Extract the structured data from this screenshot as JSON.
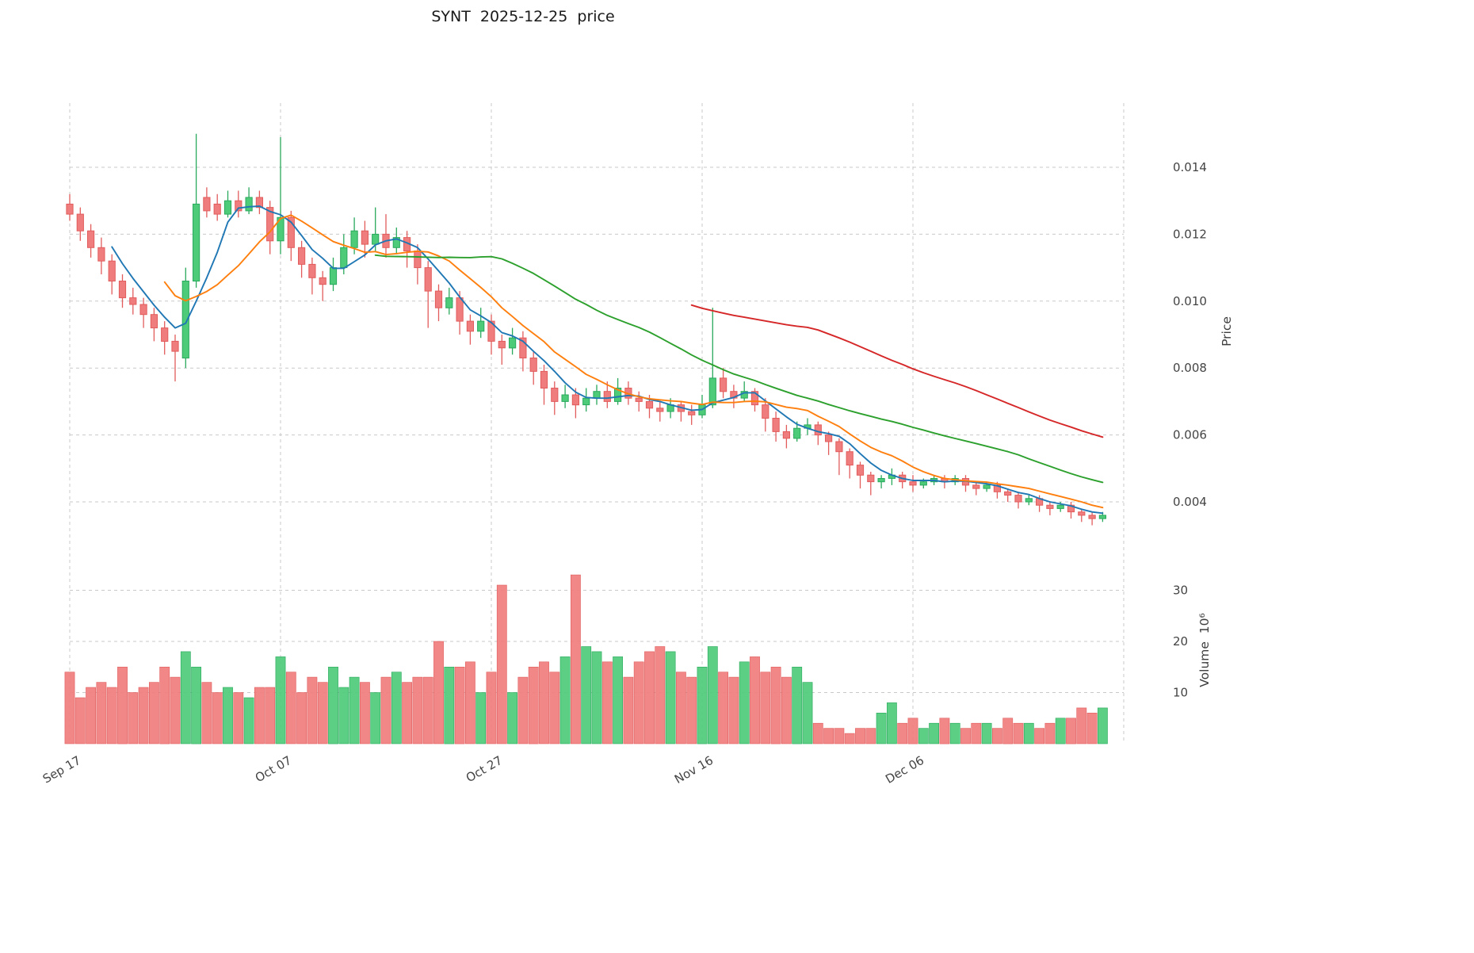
{
  "chart_data": {
    "type": "candlestick",
    "title": "SYNT  2025-12-25  price",
    "x_tick_labels": [
      "Sep 17",
      "Oct 07",
      "Oct 27",
      "Nov 16",
      "Dec 06"
    ],
    "x_tick_indices": [
      0,
      20,
      40,
      60,
      80
    ],
    "price_axis": {
      "label": "Price",
      "ticks": [
        0.004,
        0.006,
        0.008,
        0.01,
        0.012,
        0.014
      ],
      "tick_labels": [
        "0.004",
        "0.006",
        "0.008",
        "0.010",
        "0.012",
        "0.014"
      ],
      "ylim": [
        0.0027,
        0.0159
      ],
      "grid": true
    },
    "volume_axis": {
      "label": "Volume  10⁶",
      "ticks": [
        10,
        20,
        30
      ],
      "tick_labels": [
        "10",
        "20",
        "30"
      ],
      "unit_millions": true,
      "ylim": [
        0,
        37
      ],
      "grid": true
    },
    "colors": {
      "up": "#4ecb79",
      "up_edge": "#29a95c",
      "down": "#f07d7d",
      "down_edge": "#e25c5c",
      "grid": "#c9c9c9",
      "background": "#ffffff"
    },
    "moving_averages": [
      {
        "name": "ma5",
        "window": 5,
        "color": "#1f77b4"
      },
      {
        "name": "ma10",
        "window": 10,
        "color": "#ff7f0e"
      },
      {
        "name": "ma30",
        "window": 30,
        "color": "#2ca02c"
      },
      {
        "name": "ma60",
        "window": 60,
        "color": "#d62728"
      }
    ],
    "candle_fields": [
      "date",
      "open",
      "high",
      "low",
      "close",
      "volume_millions"
    ],
    "candles": [
      [
        "2025-09-17",
        0.0129,
        0.0132,
        0.0124,
        0.0126,
        14
      ],
      [
        "2025-09-18",
        0.0126,
        0.0128,
        0.0118,
        0.0121,
        9
      ],
      [
        "2025-09-19",
        0.0121,
        0.0123,
        0.0113,
        0.0116,
        11
      ],
      [
        "2025-09-20",
        0.0116,
        0.0119,
        0.0108,
        0.0112,
        12
      ],
      [
        "2025-09-21",
        0.0112,
        0.0114,
        0.0102,
        0.0106,
        11
      ],
      [
        "2025-09-22",
        0.0106,
        0.0108,
        0.0098,
        0.0101,
        15
      ],
      [
        "2025-09-23",
        0.0101,
        0.0104,
        0.0096,
        0.0099,
        10
      ],
      [
        "2025-09-24",
        0.0099,
        0.0101,
        0.0092,
        0.0096,
        11
      ],
      [
        "2025-09-25",
        0.0096,
        0.0098,
        0.0088,
        0.0092,
        12
      ],
      [
        "2025-09-26",
        0.0092,
        0.0094,
        0.0084,
        0.0088,
        15
      ],
      [
        "2025-09-27",
        0.0088,
        0.009,
        0.0076,
        0.0085,
        13
      ],
      [
        "2025-09-28",
        0.0083,
        0.011,
        0.008,
        0.0106,
        18
      ],
      [
        "2025-09-29",
        0.0106,
        0.015,
        0.0104,
        0.0129,
        15
      ],
      [
        "2025-09-30",
        0.0131,
        0.0134,
        0.0125,
        0.0127,
        12
      ],
      [
        "2025-10-01",
        0.0129,
        0.0132,
        0.0124,
        0.0126,
        10
      ],
      [
        "2025-10-02",
        0.0126,
        0.0133,
        0.0125,
        0.013,
        11
      ],
      [
        "2025-10-03",
        0.013,
        0.0133,
        0.0125,
        0.0127,
        10
      ],
      [
        "2025-10-04",
        0.0127,
        0.0134,
        0.0126,
        0.0131,
        9
      ],
      [
        "2025-10-05",
        0.0131,
        0.0133,
        0.0126,
        0.0128,
        11
      ],
      [
        "2025-10-06",
        0.0128,
        0.013,
        0.0114,
        0.0118,
        11
      ],
      [
        "2025-10-07",
        0.0118,
        0.0149,
        0.0114,
        0.0125,
        17
      ],
      [
        "2025-10-08",
        0.0125,
        0.0127,
        0.0112,
        0.0116,
        14
      ],
      [
        "2025-10-09",
        0.0116,
        0.0118,
        0.0107,
        0.0111,
        10
      ],
      [
        "2025-10-10",
        0.0111,
        0.0113,
        0.0102,
        0.0107,
        13
      ],
      [
        "2025-10-11",
        0.0107,
        0.0109,
        0.01,
        0.0105,
        12
      ],
      [
        "2025-10-12",
        0.0105,
        0.0113,
        0.0103,
        0.011,
        15
      ],
      [
        "2025-10-13",
        0.011,
        0.012,
        0.0108,
        0.0116,
        11
      ],
      [
        "2025-10-14",
        0.0116,
        0.0125,
        0.0114,
        0.0121,
        13
      ],
      [
        "2025-10-15",
        0.0121,
        0.0124,
        0.0113,
        0.0117,
        12
      ],
      [
        "2025-10-16",
        0.0117,
        0.0128,
        0.0115,
        0.012,
        10
      ],
      [
        "2025-10-17",
        0.012,
        0.0126,
        0.0113,
        0.0116,
        13
      ],
      [
        "2025-10-18",
        0.0116,
        0.0122,
        0.0114,
        0.0119,
        14
      ],
      [
        "2025-10-19",
        0.0119,
        0.0121,
        0.011,
        0.0115,
        12
      ],
      [
        "2025-10-20",
        0.0115,
        0.0117,
        0.0105,
        0.011,
        13
      ],
      [
        "2025-10-21",
        0.011,
        0.0112,
        0.0092,
        0.0103,
        13
      ],
      [
        "2025-10-22",
        0.0103,
        0.0105,
        0.0094,
        0.0098,
        20
      ],
      [
        "2025-10-23",
        0.0098,
        0.0104,
        0.0096,
        0.0101,
        15
      ],
      [
        "2025-10-24",
        0.0101,
        0.0103,
        0.009,
        0.0094,
        15
      ],
      [
        "2025-10-25",
        0.0094,
        0.0096,
        0.0087,
        0.0091,
        16
      ],
      [
        "2025-10-26",
        0.0091,
        0.0098,
        0.0089,
        0.0094,
        10
      ],
      [
        "2025-10-27",
        0.0094,
        0.0096,
        0.0084,
        0.0088,
        14
      ],
      [
        "2025-10-28",
        0.0088,
        0.009,
        0.0081,
        0.0086,
        31
      ],
      [
        "2025-10-29",
        0.0086,
        0.0092,
        0.0084,
        0.0089,
        10
      ],
      [
        "2025-10-30",
        0.0089,
        0.0091,
        0.0079,
        0.0083,
        13
      ],
      [
        "2025-10-31",
        0.0083,
        0.0085,
        0.0075,
        0.0079,
        15
      ],
      [
        "2025-11-01",
        0.0079,
        0.0081,
        0.0069,
        0.0074,
        16
      ],
      [
        "2025-11-02",
        0.0074,
        0.0076,
        0.0066,
        0.007,
        14
      ],
      [
        "2025-11-03",
        0.007,
        0.0075,
        0.0068,
        0.0072,
        17
      ],
      [
        "2025-11-04",
        0.0072,
        0.0074,
        0.0065,
        0.0069,
        33
      ],
      [
        "2025-11-05",
        0.0069,
        0.0074,
        0.0067,
        0.0071,
        19
      ],
      [
        "2025-11-06",
        0.0071,
        0.0075,
        0.0069,
        0.0073,
        18
      ],
      [
        "2025-11-07",
        0.0073,
        0.0076,
        0.0068,
        0.007,
        16
      ],
      [
        "2025-11-08",
        0.007,
        0.0077,
        0.0069,
        0.0074,
        17
      ],
      [
        "2025-11-09",
        0.0074,
        0.0076,
        0.0069,
        0.0071,
        13
      ],
      [
        "2025-11-10",
        0.0071,
        0.0073,
        0.0067,
        0.007,
        16
      ],
      [
        "2025-11-11",
        0.007,
        0.0072,
        0.0065,
        0.0068,
        18
      ],
      [
        "2025-11-12",
        0.0068,
        0.007,
        0.0064,
        0.0067,
        19
      ],
      [
        "2025-11-13",
        0.0067,
        0.0071,
        0.0065,
        0.0069,
        18
      ],
      [
        "2025-11-14",
        0.0069,
        0.007,
        0.0064,
        0.0067,
        14
      ],
      [
        "2025-11-15",
        0.0067,
        0.0069,
        0.0063,
        0.0066,
        13
      ],
      [
        "2025-11-16",
        0.0066,
        0.0072,
        0.0065,
        0.0069,
        15
      ],
      [
        "2025-11-17",
        0.0069,
        0.0098,
        0.0068,
        0.0077,
        19
      ],
      [
        "2025-11-18",
        0.0077,
        0.008,
        0.0071,
        0.0073,
        14
      ],
      [
        "2025-11-19",
        0.0073,
        0.0075,
        0.0068,
        0.0071,
        13
      ],
      [
        "2025-11-20",
        0.0071,
        0.0076,
        0.007,
        0.0073,
        16
      ],
      [
        "2025-11-21",
        0.0073,
        0.0074,
        0.0067,
        0.0069,
        17
      ],
      [
        "2025-11-22",
        0.0069,
        0.0071,
        0.0061,
        0.0065,
        14
      ],
      [
        "2025-11-23",
        0.0065,
        0.0067,
        0.0058,
        0.0061,
        15
      ],
      [
        "2025-11-24",
        0.0061,
        0.0063,
        0.0056,
        0.0059,
        13
      ],
      [
        "2025-11-25",
        0.0059,
        0.0064,
        0.0058,
        0.0062,
        15
      ],
      [
        "2025-11-26",
        0.0062,
        0.0065,
        0.006,
        0.0063,
        12
      ],
      [
        "2025-11-27",
        0.0063,
        0.0064,
        0.0057,
        0.006,
        4
      ],
      [
        "2025-11-28",
        0.006,
        0.0061,
        0.0054,
        0.0058,
        3
      ],
      [
        "2025-11-29",
        0.0058,
        0.0059,
        0.0048,
        0.0055,
        3
      ],
      [
        "2025-11-30",
        0.0055,
        0.0056,
        0.0047,
        0.0051,
        2
      ],
      [
        "2025-12-01",
        0.0051,
        0.0052,
        0.0044,
        0.0048,
        3
      ],
      [
        "2025-12-02",
        0.0048,
        0.0049,
        0.0042,
        0.0046,
        3
      ],
      [
        "2025-12-03",
        0.0046,
        0.0048,
        0.0044,
        0.0047,
        6
      ],
      [
        "2025-12-04",
        0.0047,
        0.005,
        0.0045,
        0.0048,
        8
      ],
      [
        "2025-12-05",
        0.0048,
        0.0049,
        0.0044,
        0.0046,
        4
      ],
      [
        "2025-12-06",
        0.0046,
        0.0048,
        0.0043,
        0.0045,
        5
      ],
      [
        "2025-12-07",
        0.0045,
        0.0047,
        0.0044,
        0.0046,
        3
      ],
      [
        "2025-12-08",
        0.0046,
        0.0048,
        0.0045,
        0.0047,
        4
      ],
      [
        "2025-12-09",
        0.0047,
        0.0048,
        0.0044,
        0.0046,
        5
      ],
      [
        "2025-12-10",
        0.0046,
        0.0048,
        0.0045,
        0.0047,
        4
      ],
      [
        "2025-12-11",
        0.0047,
        0.0048,
        0.0043,
        0.0045,
        3
      ],
      [
        "2025-12-12",
        0.0045,
        0.0046,
        0.0042,
        0.0044,
        4
      ],
      [
        "2025-12-13",
        0.0044,
        0.0046,
        0.0043,
        0.0045,
        4
      ],
      [
        "2025-12-14",
        0.0045,
        0.0046,
        0.0041,
        0.0043,
        3
      ],
      [
        "2025-12-15",
        0.0043,
        0.0044,
        0.004,
        0.0042,
        5
      ],
      [
        "2025-12-16",
        0.0042,
        0.0043,
        0.0038,
        0.004,
        4
      ],
      [
        "2025-12-17",
        0.004,
        0.0042,
        0.0039,
        0.0041,
        4
      ],
      [
        "2025-12-18",
        0.0041,
        0.0042,
        0.0037,
        0.0039,
        3
      ],
      [
        "2025-12-19",
        0.0039,
        0.004,
        0.0036,
        0.0038,
        4
      ],
      [
        "2025-12-20",
        0.0038,
        0.004,
        0.0037,
        0.0039,
        5
      ],
      [
        "2025-12-21",
        0.0039,
        0.004,
        0.0035,
        0.0037,
        5
      ],
      [
        "2025-12-22",
        0.0037,
        0.0038,
        0.0034,
        0.0036,
        7
      ],
      [
        "2025-12-23",
        0.0036,
        0.0037,
        0.0033,
        0.0035,
        6
      ],
      [
        "2025-12-24",
        0.0035,
        0.0037,
        0.0034,
        0.0036,
        7
      ]
    ]
  }
}
